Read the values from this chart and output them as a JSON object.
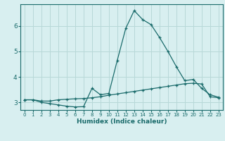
{
  "xlabel": "Humidex (Indice chaleur)",
  "background_color": "#d8eff0",
  "grid_color": "#b8d8d8",
  "line_color": "#1a6b6b",
  "xlim": [
    -0.5,
    23.5
  ],
  "ylim": [
    2.7,
    6.85
  ],
  "yticks": [
    3,
    4,
    5,
    6
  ],
  "xticks": [
    0,
    1,
    2,
    3,
    4,
    5,
    6,
    7,
    8,
    9,
    10,
    11,
    12,
    13,
    14,
    15,
    16,
    17,
    18,
    19,
    20,
    21,
    22,
    23
  ],
  "series1_x": [
    0,
    1,
    2,
    3,
    4,
    5,
    6,
    7,
    8,
    9,
    10,
    11,
    12,
    13,
    14,
    15,
    16,
    17,
    18,
    19,
    20,
    21,
    22,
    23
  ],
  "series1_y": [
    3.1,
    3.1,
    3.0,
    2.95,
    2.9,
    2.85,
    2.82,
    2.83,
    3.55,
    3.3,
    3.35,
    4.65,
    5.9,
    6.6,
    6.25,
    6.05,
    5.55,
    5.0,
    4.4,
    3.85,
    3.9,
    3.55,
    3.3,
    3.2
  ],
  "series2_x": [
    0,
    1,
    2,
    3,
    4,
    5,
    6,
    7,
    8,
    9,
    10,
    11,
    12,
    13,
    14,
    15,
    16,
    17,
    18,
    19,
    20,
    21,
    22,
    23
  ],
  "series2_y": [
    3.1,
    3.1,
    3.05,
    3.05,
    3.1,
    3.12,
    3.14,
    3.15,
    3.18,
    3.22,
    3.28,
    3.33,
    3.38,
    3.43,
    3.48,
    3.53,
    3.58,
    3.63,
    3.68,
    3.73,
    3.75,
    3.72,
    3.22,
    3.18
  ]
}
